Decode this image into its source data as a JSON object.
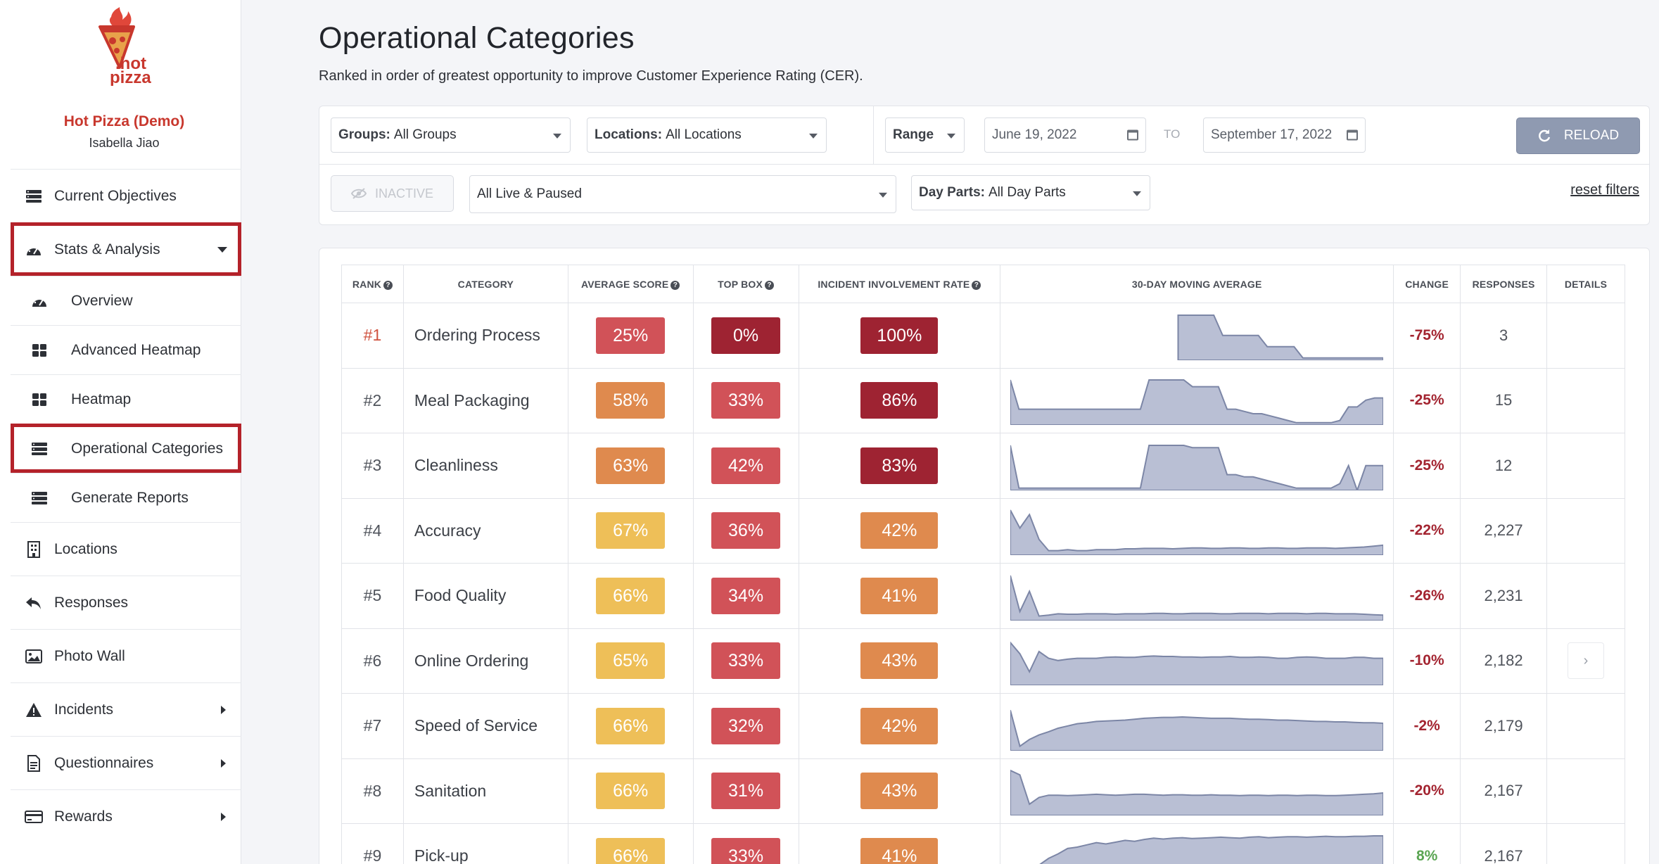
{
  "brand": {
    "name": "Hot Pizza (Demo)",
    "user": "Isabella Jiao",
    "logo_text": ".hot pizza"
  },
  "nav": [
    {
      "label": "Current Objectives",
      "icon": "server-icon",
      "type": "top"
    },
    {
      "label": "Stats & Analysis",
      "icon": "dashboard-icon",
      "type": "top",
      "expanded": true,
      "selected": true
    },
    {
      "label": "Overview",
      "icon": "dashboard-icon",
      "type": "sub"
    },
    {
      "label": "Advanced Heatmap",
      "icon": "grid-icon",
      "type": "sub"
    },
    {
      "label": "Heatmap",
      "icon": "grid-icon",
      "type": "sub"
    },
    {
      "label": "Operational Categories",
      "icon": "server-icon",
      "type": "sub",
      "selected": true
    },
    {
      "label": "Generate Reports",
      "icon": "server-icon",
      "type": "sub"
    },
    {
      "label": "Locations",
      "icon": "building-icon",
      "type": "top"
    },
    {
      "label": "Responses",
      "icon": "reply-icon",
      "type": "top"
    },
    {
      "label": "Photo Wall",
      "icon": "image-icon",
      "type": "top"
    },
    {
      "label": "Incidents",
      "icon": "warning-icon",
      "type": "top",
      "has_submenu": true
    },
    {
      "label": "Questionnaires",
      "icon": "file-icon",
      "type": "top",
      "has_submenu": true
    },
    {
      "label": "Rewards",
      "icon": "card-icon",
      "type": "top",
      "has_submenu": true
    }
  ],
  "page": {
    "title": "Operational Categories",
    "subtitle": "Ranked in order of greatest opportunity to improve Customer Experience Rating (CER)."
  },
  "filters": {
    "groups_label": "Groups:",
    "groups_value": "All Groups",
    "locations_label": "Locations:",
    "locations_value": "All Locations",
    "range_label": "Range",
    "date_from": "June 19, 2022",
    "to_label": "TO",
    "date_to": "September 17, 2022",
    "reload_label": "RELOAD",
    "inactive_label": "INACTIVE",
    "status_value": "All Live & Paused",
    "dayparts_label": "Day Parts:",
    "dayparts_value": "All Day Parts",
    "reset_label": "reset filters"
  },
  "table": {
    "headers": {
      "rank": "RANK",
      "category": "CATEGORY",
      "avg": "AVERAGE SCORE",
      "topbox": "TOP BOX",
      "incident": "INCIDENT INVOLVEMENT RATE",
      "mavg": "30-DAY MOVING AVERAGE",
      "change": "CHANGE",
      "responses": "RESPONSES",
      "details": "DETAILS"
    },
    "rows": [
      {
        "rank": "#1",
        "category": "Ordering Process",
        "avg": "25%",
        "topbox": "0%",
        "incident": "100%",
        "change": "-75%",
        "responses": "3"
      },
      {
        "rank": "#2",
        "category": "Meal Packaging",
        "avg": "58%",
        "topbox": "33%",
        "incident": "86%",
        "change": "-25%",
        "responses": "15"
      },
      {
        "rank": "#3",
        "category": "Cleanliness",
        "avg": "63%",
        "topbox": "42%",
        "incident": "83%",
        "change": "-25%",
        "responses": "12"
      },
      {
        "rank": "#4",
        "category": "Accuracy",
        "avg": "67%",
        "topbox": "36%",
        "incident": "42%",
        "change": "-22%",
        "responses": "2,227"
      },
      {
        "rank": "#5",
        "category": "Food Quality",
        "avg": "66%",
        "topbox": "34%",
        "incident": "41%",
        "change": "-26%",
        "responses": "2,231"
      },
      {
        "rank": "#6",
        "category": "Online Ordering",
        "avg": "65%",
        "topbox": "33%",
        "incident": "43%",
        "change": "-10%",
        "responses": "2,182",
        "details": "›"
      },
      {
        "rank": "#7",
        "category": "Speed of Service",
        "avg": "66%",
        "topbox": "32%",
        "incident": "42%",
        "change": "-2%",
        "responses": "2,179"
      },
      {
        "rank": "#8",
        "category": "Sanitation",
        "avg": "66%",
        "topbox": "31%",
        "incident": "43%",
        "change": "-20%",
        "responses": "2,167"
      },
      {
        "rank": "#9",
        "category": "Pick-up",
        "avg": "66%",
        "topbox": "33%",
        "incident": "41%",
        "change": "8%",
        "responses": "2,167"
      }
    ]
  },
  "colors": {
    "brand_red": "#c8372d",
    "pill_red_dark": "#9e2332",
    "pill_red": "#d15258",
    "pill_orange": "#df8a4e",
    "pill_yellow": "#eebf58",
    "change_negative": "#a32430",
    "change_positive": "#5aa552",
    "spark_fill": "#b9bfd4",
    "spark_line": "#7c86a6"
  }
}
